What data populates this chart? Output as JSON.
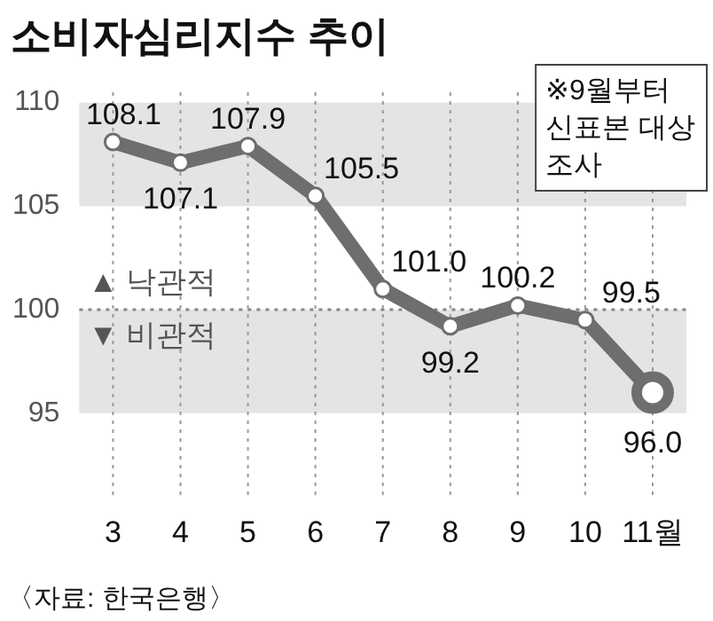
{
  "chart_data": {
    "type": "line",
    "title": "소비자심리지수 추이",
    "categories": [
      "3",
      "4",
      "5",
      "6",
      "7",
      "8",
      "9",
      "10",
      "11월"
    ],
    "series": [
      {
        "color": "#6e6e6e",
        "values": [
          108.1,
          107.1,
          107.9,
          105.5,
          101.0,
          99.2,
          100.2,
          99.5,
          96.0
        ],
        "value_labels": [
          "108.1",
          "107.1",
          "107.9",
          "105.5",
          "101.0",
          "99.2",
          "100.2",
          "99.5",
          "96.0"
        ]
      }
    ],
    "ylim": [
      91,
      110.5
    ],
    "yticks": [
      95,
      100,
      105,
      110
    ],
    "bands": [
      {
        "axis": "y",
        "from": 105,
        "to": 110,
        "color": "#e4e4e4"
      },
      {
        "axis": "y",
        "from": 95,
        "to": 100,
        "color": "#e4e4e4"
      }
    ],
    "ref_lines": [
      {
        "axis": "y",
        "value": 100,
        "color": "#888888",
        "line_style": "dotted"
      }
    ],
    "annotations": [
      "※9월부터\n신표본 대상\n조사",
      "▲ 낙관적",
      "▼ 비관적",
      "〈자료: 한국은행〉"
    ],
    "grid": "x",
    "marker": "circle",
    "line_style": "solid",
    "legend": false
  }
}
